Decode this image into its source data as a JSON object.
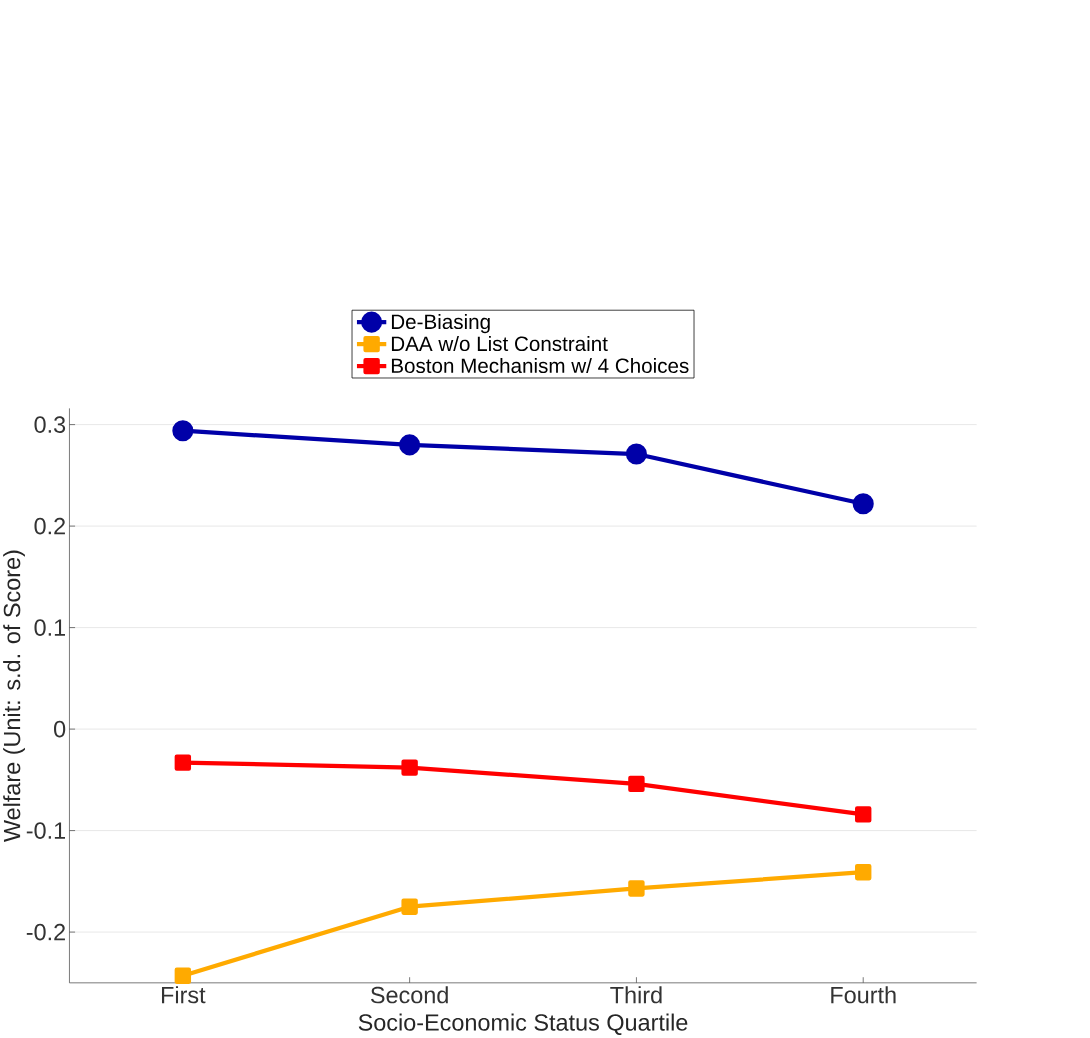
{
  "chart_data": {
    "type": "line",
    "xlabel": "Socio-Economic Status Quartile",
    "ylabel": "Welfare (Unit: s.d. of Score)",
    "categories": [
      "First",
      "Second",
      "Third",
      "Fourth"
    ],
    "series": [
      {
        "name": "De-Biasing",
        "color": "#0000a8",
        "marker": "circle",
        "values": [
          0.294,
          0.28,
          0.271,
          0.222
        ]
      },
      {
        "name": "DAA w/o List Constraint",
        "color": "#ffaa00",
        "marker": "square",
        "values": [
          -0.243,
          -0.175,
          -0.157,
          -0.141
        ]
      },
      {
        "name": "Boston Mechanism w/ 4 Choices",
        "color": "#ff0000",
        "marker": "square",
        "values": [
          -0.033,
          -0.038,
          -0.054,
          -0.084
        ]
      }
    ],
    "ylim": [
      -0.25,
      0.316
    ],
    "yticks": [
      -0.2,
      -0.1,
      0,
      0.1,
      0.2,
      0.3
    ],
    "grid": "y",
    "legend": "top",
    "line_style": "solid"
  }
}
